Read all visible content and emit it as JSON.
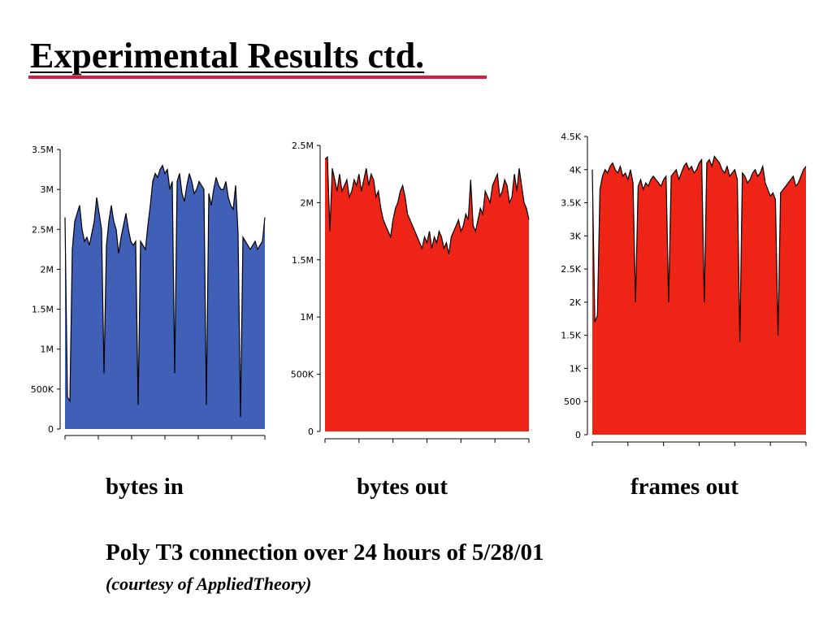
{
  "slide": {
    "title": "Experimental Results ctd.",
    "accent_color": "#e2173c",
    "footnote": "Poly T3 connection over 24 hours of 5/28/01",
    "credit": "(courtesy of AppliedTheory)"
  },
  "chart_data": [
    {
      "type": "area",
      "caption": "bytes in",
      "color": "#4060b8",
      "ylim": [
        0,
        3500000
      ],
      "yticks": [
        0,
        500000,
        1000000,
        1500000,
        2000000,
        2500000,
        3000000,
        3500000
      ],
      "ytick_labels": [
        "0",
        "500K",
        "1M",
        "1.5M",
        "2M",
        "2.5M",
        "3M",
        "3.5M"
      ],
      "grid": false,
      "legend": "none",
      "values": [
        2650000,
        400000,
        350000,
        2250000,
        2600000,
        2700000,
        2800000,
        2500000,
        2350000,
        2400000,
        2300000,
        2450000,
        2600000,
        2900000,
        2700000,
        2500000,
        700000,
        2300000,
        2600000,
        2800000,
        2600000,
        2500000,
        2200000,
        2400000,
        2550000,
        2700000,
        2500000,
        2350000,
        2300000,
        2350000,
        300000,
        2350000,
        2300000,
        2250000,
        2550000,
        2800000,
        3100000,
        3200000,
        3150000,
        3250000,
        3300000,
        3200000,
        3250000,
        3000000,
        3100000,
        700000,
        3100000,
        3200000,
        2950000,
        2850000,
        3050000,
        3200000,
        3100000,
        2950000,
        3000000,
        3100000,
        3050000,
        3000000,
        300000,
        2950000,
        2800000,
        3000000,
        3150000,
        3050000,
        3000000,
        3000000,
        3100000,
        2900000,
        2800000,
        2750000,
        3050000,
        2450000,
        150000,
        2400000,
        2350000,
        2300000,
        2250000,
        2300000,
        2350000,
        2250000,
        2300000,
        2350000,
        2650000
      ]
    },
    {
      "type": "area",
      "caption": "bytes out",
      "color": "#ee2417",
      "ylim": [
        0,
        2500000
      ],
      "yticks": [
        0,
        500000,
        1000000,
        1500000,
        2000000,
        2500000
      ],
      "ytick_labels": [
        "0",
        "500K",
        "1M",
        "1.5M",
        "2M",
        "2.5M"
      ],
      "grid": false,
      "legend": "none",
      "values": [
        2380000,
        2400000,
        1750000,
        2300000,
        2200000,
        2100000,
        2250000,
        2100000,
        2150000,
        2200000,
        2050000,
        2100000,
        2200000,
        2150000,
        2250000,
        2100000,
        2200000,
        2300000,
        2150000,
        2250000,
        2200000,
        2050000,
        2100000,
        1950000,
        1850000,
        1800000,
        1750000,
        1700000,
        1850000,
        1950000,
        2000000,
        2100000,
        2150000,
        2050000,
        1900000,
        1850000,
        1800000,
        1750000,
        1700000,
        1650000,
        1600000,
        1700000,
        1650000,
        1750000,
        1600000,
        1700000,
        1650000,
        1750000,
        1700000,
        1600000,
        1650000,
        1550000,
        1700000,
        1750000,
        1800000,
        1850000,
        1750000,
        1800000,
        1900000,
        1850000,
        2200000,
        1800000,
        1750000,
        1850000,
        1950000,
        1900000,
        2100000,
        2050000,
        2000000,
        2150000,
        2200000,
        2250000,
        2050000,
        2100000,
        2200000,
        2150000,
        2000000,
        2050000,
        2250000,
        2100000,
        2300000,
        2150000,
        2000000,
        1950000,
        1850000
      ]
    },
    {
      "type": "area",
      "caption": "frames out",
      "color": "#ee2417",
      "ylim": [
        0,
        4500
      ],
      "yticks": [
        0,
        500,
        1000,
        1500,
        2000,
        2500,
        3000,
        3500,
        4000,
        4500
      ],
      "ytick_labels": [
        "0",
        "500",
        "1K",
        "1.5K",
        "2K",
        "2.5K",
        "3K",
        "3.5K",
        "4K",
        "4.5K"
      ],
      "grid": false,
      "legend": "none",
      "values": [
        4000,
        1700,
        1800,
        3700,
        3900,
        4000,
        3950,
        4050,
        4100,
        4000,
        3950,
        4050,
        3900,
        3950,
        3850,
        4000,
        3800,
        2000,
        3750,
        3850,
        3700,
        3800,
        3750,
        3850,
        3900,
        3850,
        3800,
        3750,
        3850,
        3900,
        2000,
        3900,
        3950,
        4000,
        3850,
        3950,
        4050,
        4100,
        4000,
        4050,
        3950,
        4000,
        4100,
        4150,
        2000,
        4100,
        4150,
        4050,
        4200,
        4150,
        4100,
        4000,
        3950,
        4050,
        3900,
        3950,
        4000,
        3850,
        1400,
        3950,
        3900,
        3800,
        3850,
        3950,
        4000,
        3900,
        3950,
        4050,
        3800,
        3700,
        3600,
        3650,
        3550,
        1500,
        3650,
        3700,
        3750,
        3800,
        3850,
        3900,
        3750,
        3800,
        3900,
        4000,
        4050
      ]
    }
  ]
}
